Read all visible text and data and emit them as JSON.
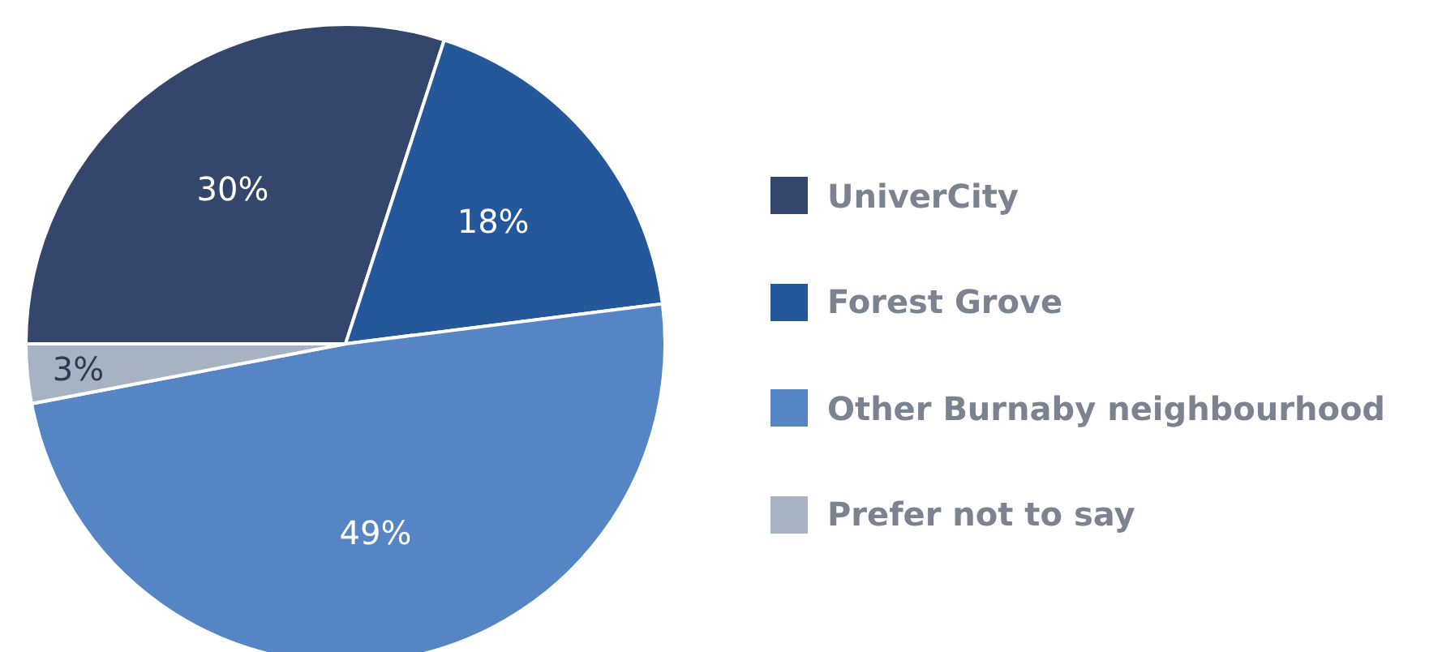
{
  "chart_data": {
    "type": "pie",
    "categories": [
      "UniverCity",
      "Forest Grove",
      "Other Burnaby neighbourhood",
      "Prefer not to say"
    ],
    "values": [
      30,
      18,
      49,
      3
    ],
    "colors": [
      "#34466b",
      "#25589a",
      "#5585c5",
      "#a7b3c3"
    ],
    "value_labels": [
      "30%",
      "18%",
      "49%",
      "3%"
    ],
    "legend": "right"
  }
}
